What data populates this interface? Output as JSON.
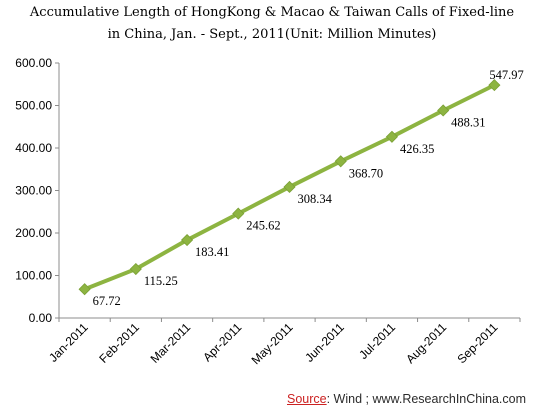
{
  "chart_data": {
    "type": "line",
    "title_lines": [
      "Accumulative Length of HongKong & Macao & Taiwan Calls of Fixed-line",
      "in China, Jan. - Sept., 2011(Unit: Million Minutes)"
    ],
    "categories": [
      "Jan-2011",
      "Feb-2011",
      "Mar-2011",
      "Apr-2011",
      "May-2011",
      "Jun-2011",
      "Jul-2011",
      "Aug-2011",
      "Sep-2011"
    ],
    "values": [
      67.72,
      115.25,
      183.41,
      245.62,
      308.34,
      368.7,
      426.35,
      488.31,
      547.97
    ],
    "data_labels": [
      "67.72",
      "115.25",
      "183.41",
      "245.62",
      "308.34",
      "368.70",
      "426.35",
      "488.31",
      "547.97"
    ],
    "y_ticks": [
      "0.00",
      "100.00",
      "200.00",
      "300.00",
      "400.00",
      "500.00",
      "600.00"
    ],
    "ylim": [
      0,
      600
    ],
    "grid": false,
    "legend": "none",
    "line_color": "#8DB441",
    "marker_color": "#8DB441"
  },
  "source": {
    "label": "Source",
    "text": ": Wind ; www.ResearchInChina.com"
  }
}
